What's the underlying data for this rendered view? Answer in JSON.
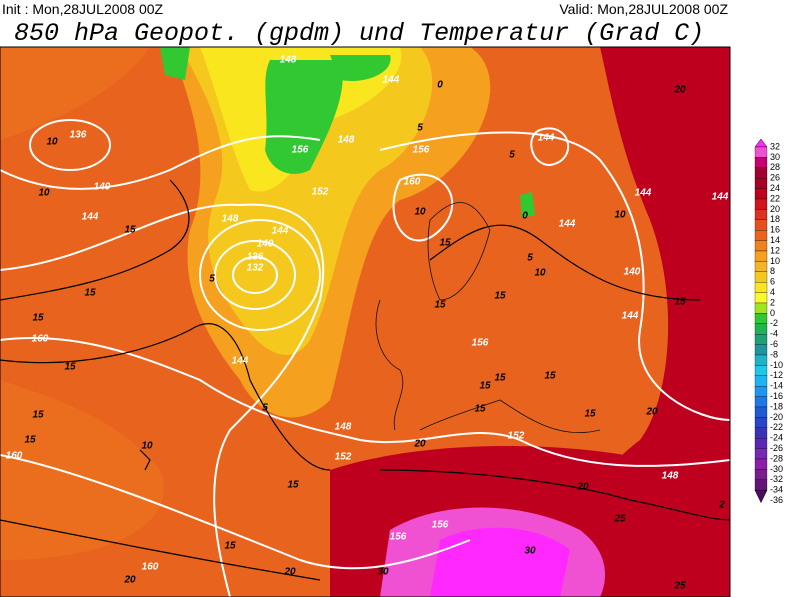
{
  "header": {
    "init": "Init : Mon,28JUL2008 00Z",
    "valid": "Valid: Mon,28JUL2008 00Z",
    "title": "850 hPa Geopot. (gpdm) und Temperatur (Grad C)"
  },
  "colorbar": {
    "labels": [
      32,
      30,
      28,
      26,
      24,
      22,
      20,
      18,
      16,
      14,
      12,
      10,
      8,
      6,
      4,
      2,
      0,
      -2,
      -4,
      -6,
      -8,
      -10,
      -12,
      -14,
      -16,
      -18,
      -20,
      -22,
      -24,
      -26,
      -28,
      -30,
      -32,
      -34,
      -36
    ],
    "colors": [
      "#ff28ff",
      "#f050d2",
      "#c8006e",
      "#a00032",
      "#aa0028",
      "#be001e",
      "#d2141e",
      "#dc321e",
      "#e6501e",
      "#eb641e",
      "#f0821e",
      "#f5a01e",
      "#f5b428",
      "#f5c81e",
      "#fae61e",
      "#fafa28",
      "#a0e61e",
      "#32c832",
      "#1eb450",
      "#1ea078",
      "#1e96a0",
      "#1eb4c8",
      "#1ec8e6",
      "#1eb4f0",
      "#1e96f0",
      "#1e78e6",
      "#1e5ad2",
      "#2846c8",
      "#3c32b4",
      "#5a28b4",
      "#7828b4",
      "#8c1eaa",
      "#781e8c",
      "#641478",
      "#500a64"
    ]
  },
  "contour_labels": {
    "geopotential": [
      "136",
      "140",
      "144",
      "148",
      "144",
      "140",
      "136",
      "132",
      "144",
      "148",
      "152",
      "156",
      "160",
      "144",
      "144",
      "144",
      "140",
      "144",
      "156",
      "152",
      "148",
      "160",
      "156",
      "156",
      "160",
      "160",
      "148",
      "156",
      "152",
      "148",
      "144",
      "144"
    ],
    "temperature": [
      "10",
      "10",
      "15",
      "5",
      "15",
      "15",
      "15",
      "15",
      "15",
      "10",
      "15",
      "15",
      "20",
      "20",
      "30",
      "30",
      "25",
      "20",
      "20",
      "15",
      "15",
      "15",
      "15",
      "5",
      "0",
      "10",
      "10",
      "5",
      "10",
      "15",
      "20",
      "25",
      "2",
      "15",
      "20",
      "15",
      "15",
      "15",
      "5",
      "0",
      "5"
    ]
  }
}
